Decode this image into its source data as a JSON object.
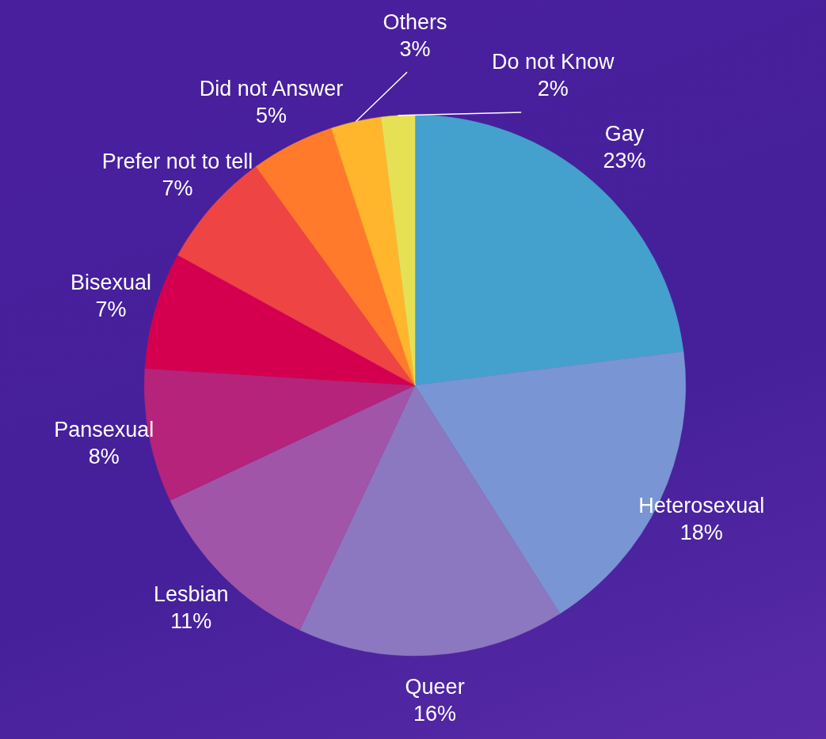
{
  "chart_data": {
    "type": "pie",
    "categories": [
      "Gay",
      "Heterosexual",
      "Queer",
      "Lesbian",
      "Pansexual",
      "Bisexual",
      "Prefer not to tell",
      "Did not Answer",
      "Others",
      "Do not Know"
    ],
    "values": [
      23,
      18,
      16,
      11,
      8,
      7,
      7,
      5,
      3,
      2
    ],
    "value_labels": [
      "23%",
      "18%",
      "16%",
      "11%",
      "8%",
      "7%",
      "7%",
      "5%",
      "3%",
      "2%"
    ],
    "colors": [
      "#44a0cc",
      "#7a95d4",
      "#8c78c0",
      "#a055a8",
      "#b5237a",
      "#d4004f",
      "#ef4444",
      "#ff7a2a",
      "#ffb52c",
      "#e6e055"
    ],
    "legend": false
  }
}
